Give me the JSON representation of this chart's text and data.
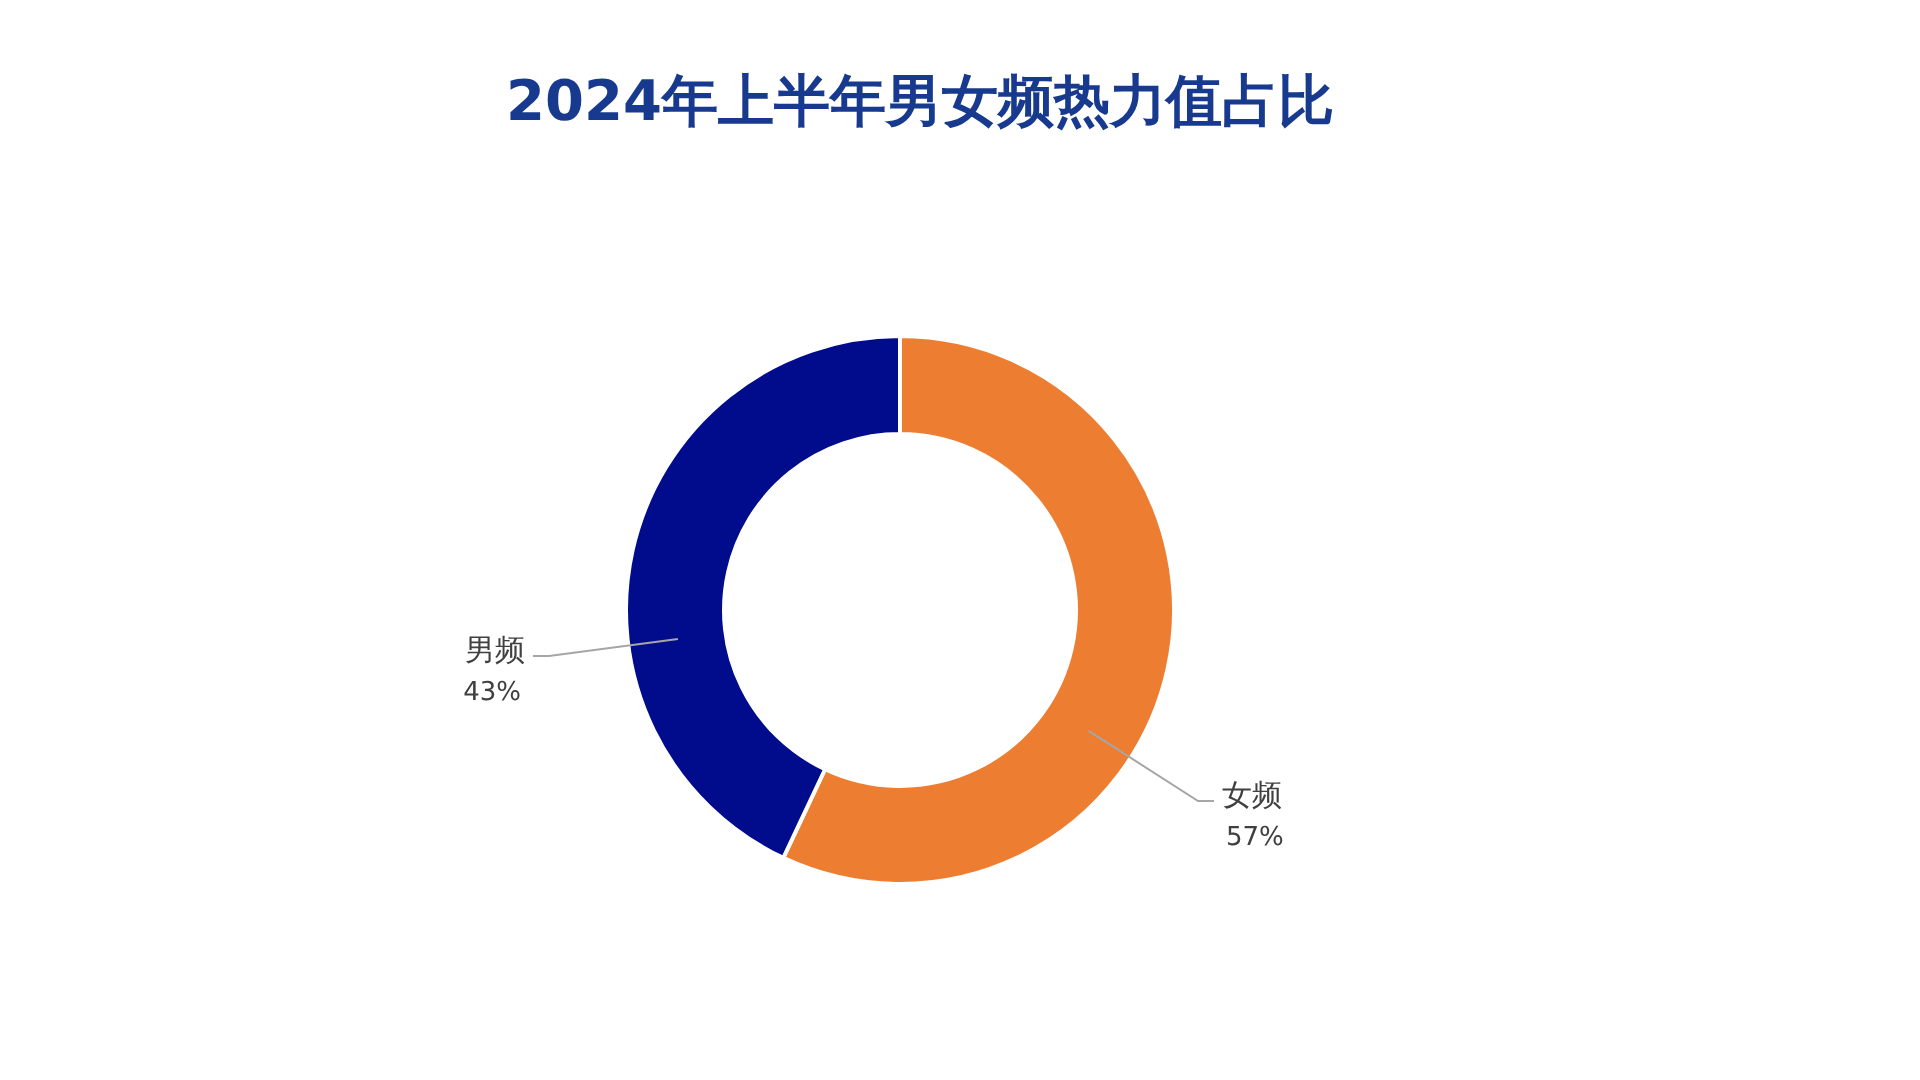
{
  "chart_data": {
    "type": "donut",
    "title": "2024年上半年男女频热力值占比",
    "categories": [
      "女频",
      "男频"
    ],
    "values": [
      57,
      43
    ],
    "colors": [
      "#ed7d31",
      "#000c8c"
    ],
    "value_labels": [
      "57%",
      "43%"
    ]
  }
}
